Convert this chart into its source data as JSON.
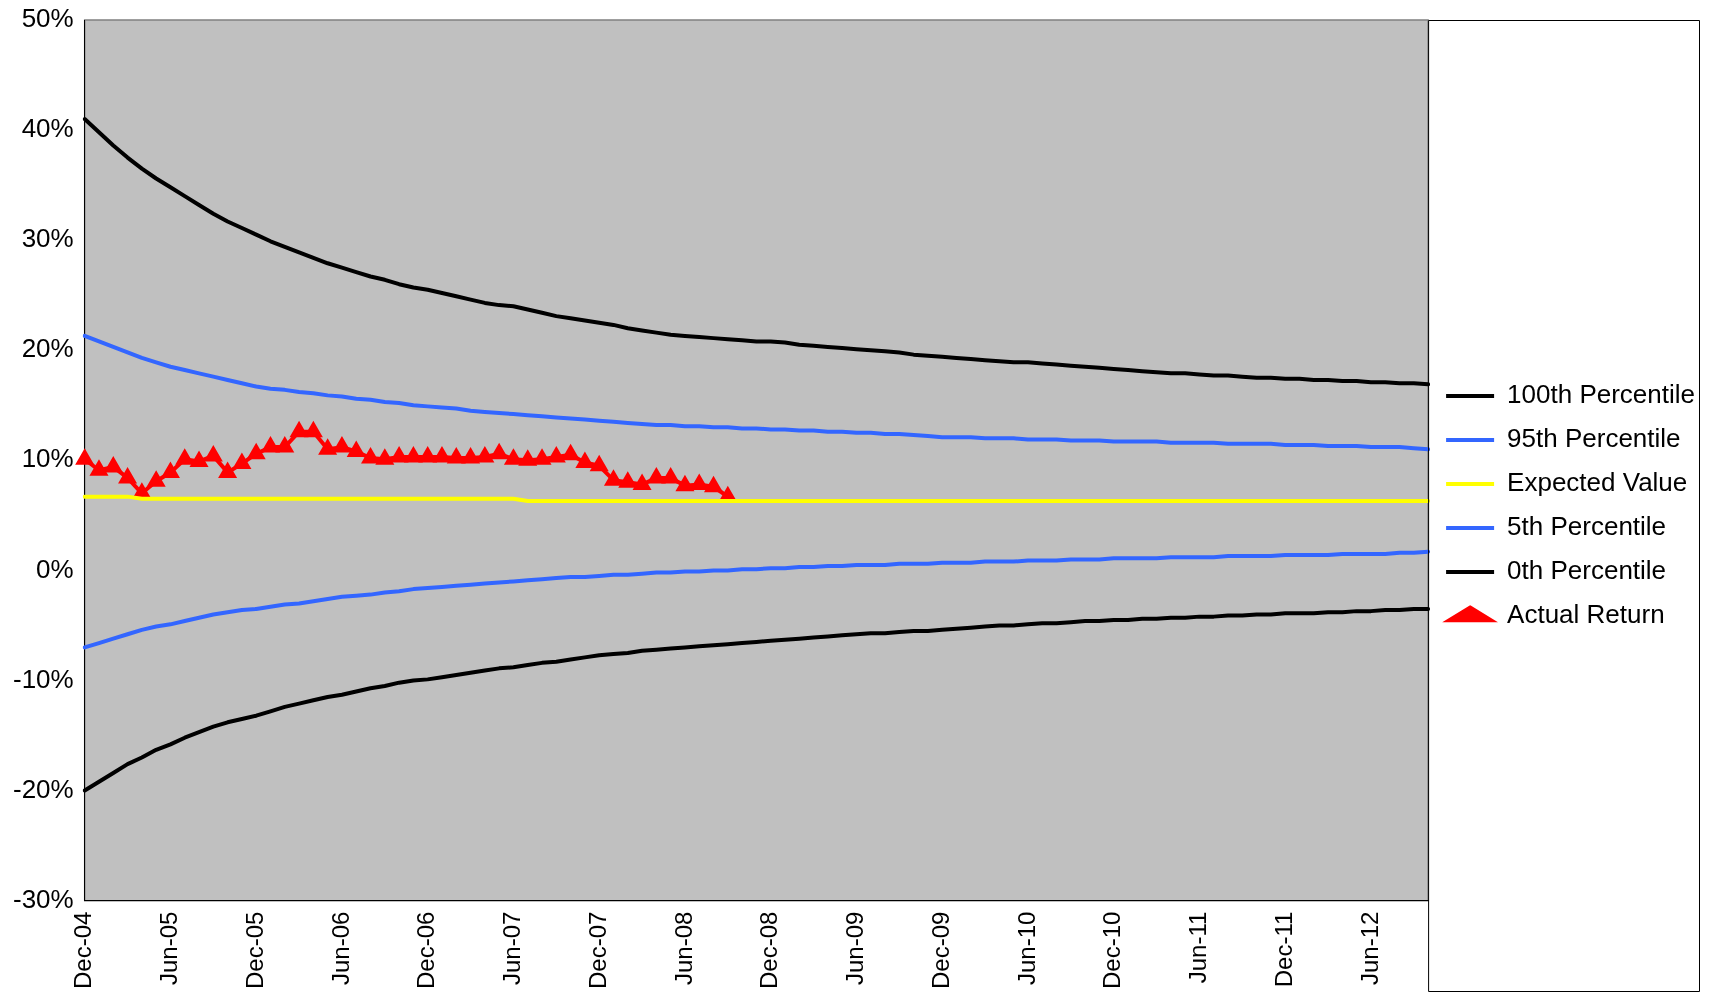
{
  "chart_data": {
    "type": "line",
    "categories": [
      "Dec-04",
      null,
      null,
      null,
      null,
      null,
      "Jun-05",
      null,
      null,
      null,
      null,
      null,
      "Dec-05",
      null,
      null,
      null,
      null,
      null,
      "Jun-06",
      null,
      null,
      null,
      null,
      null,
      "Dec-06",
      null,
      null,
      null,
      null,
      null,
      "Jun-07",
      null,
      null,
      null,
      null,
      null,
      "Dec-07",
      null,
      null,
      null,
      null,
      null,
      "Jun-08",
      null,
      null,
      null,
      null,
      null,
      "Dec-08",
      null,
      null,
      null,
      null,
      null,
      "Jun-09",
      null,
      null,
      null,
      null,
      null,
      "Dec-09",
      null,
      null,
      null,
      null,
      null,
      "Jun-10",
      null,
      null,
      null,
      null,
      null,
      "Dec-10",
      null,
      null,
      null,
      null,
      null,
      "Jun-11",
      null,
      null,
      null,
      null,
      null,
      "Dec-11",
      null,
      null,
      null,
      null,
      null,
      "Jun-12",
      null,
      null,
      null,
      null
    ],
    "series": [
      {
        "name": "100th Percentile",
        "color": "#000000",
        "marker": "none",
        "values": [
          41,
          39.8,
          38.6,
          37.5,
          36.5,
          35.6,
          34.8,
          34.0,
          33.2,
          32.4,
          31.7,
          31.1,
          30.5,
          29.9,
          29.4,
          28.9,
          28.4,
          27.9,
          27.5,
          27.1,
          26.7,
          26.4,
          26.0,
          25.7,
          25.5,
          25.2,
          24.9,
          24.6,
          24.3,
          24.1,
          24.0,
          23.7,
          23.4,
          23.1,
          22.9,
          22.7,
          22.5,
          22.3,
          22.0,
          21.8,
          21.6,
          21.4,
          21.3,
          21.2,
          21.1,
          21.0,
          20.9,
          20.8,
          20.8,
          20.7,
          20.5,
          20.4,
          20.3,
          20.2,
          20.1,
          20.0,
          19.9,
          19.8,
          19.6,
          19.5,
          19.4,
          19.3,
          19.2,
          19.1,
          19.0,
          18.9,
          18.9,
          18.8,
          18.7,
          18.6,
          18.5,
          18.4,
          18.3,
          18.2,
          18.1,
          18.0,
          17.9,
          17.9,
          17.8,
          17.7,
          17.7,
          17.6,
          17.5,
          17.5,
          17.4,
          17.4,
          17.3,
          17.3,
          17.2,
          17.2,
          17.1,
          17.1,
          17.0,
          17.0,
          16.9
        ]
      },
      {
        "name": "95th Percentile",
        "color": "#3366ff",
        "marker": "none",
        "values": [
          21.3,
          20.8,
          20.3,
          19.8,
          19.3,
          18.9,
          18.5,
          18.2,
          17.9,
          17.6,
          17.3,
          17.0,
          16.7,
          16.5,
          16.4,
          16.2,
          16.1,
          15.9,
          15.8,
          15.6,
          15.5,
          15.3,
          15.2,
          15.0,
          14.9,
          14.8,
          14.7,
          14.5,
          14.4,
          14.3,
          14.2,
          14.1,
          14.0,
          13.9,
          13.8,
          13.7,
          13.6,
          13.5,
          13.4,
          13.3,
          13.2,
          13.2,
          13.1,
          13.1,
          13.0,
          13.0,
          12.9,
          12.9,
          12.8,
          12.8,
          12.7,
          12.7,
          12.6,
          12.6,
          12.5,
          12.5,
          12.4,
          12.4,
          12.3,
          12.2,
          12.1,
          12.1,
          12.1,
          12.0,
          12.0,
          12.0,
          11.9,
          11.9,
          11.9,
          11.8,
          11.8,
          11.8,
          11.7,
          11.7,
          11.7,
          11.7,
          11.6,
          11.6,
          11.6,
          11.6,
          11.5,
          11.5,
          11.5,
          11.5,
          11.4,
          11.4,
          11.4,
          11.3,
          11.3,
          11.3,
          11.2,
          11.2,
          11.2,
          11.1,
          11.0
        ]
      },
      {
        "name": "Expected Value",
        "color": "#ffff00",
        "marker": "none",
        "values": [
          6.7,
          6.7,
          6.7,
          6.7,
          6.5,
          6.5,
          6.5,
          6.5,
          6.5,
          6.5,
          6.5,
          6.5,
          6.5,
          6.5,
          6.5,
          6.5,
          6.5,
          6.5,
          6.5,
          6.5,
          6.5,
          6.5,
          6.5,
          6.5,
          6.5,
          6.5,
          6.5,
          6.5,
          6.5,
          6.5,
          6.5,
          6.3,
          6.3,
          6.3,
          6.3,
          6.3,
          6.3,
          6.3,
          6.3,
          6.3,
          6.3,
          6.3,
          6.3,
          6.3,
          6.3,
          6.3,
          6.3,
          6.3,
          6.3,
          6.3,
          6.3,
          6.3,
          6.3,
          6.3,
          6.3,
          6.3,
          6.3,
          6.3,
          6.3,
          6.3,
          6.3,
          6.3,
          6.3,
          6.3,
          6.3,
          6.3,
          6.3,
          6.3,
          6.3,
          6.3,
          6.3,
          6.3,
          6.3,
          6.3,
          6.3,
          6.3,
          6.3,
          6.3,
          6.3,
          6.3,
          6.3,
          6.3,
          6.3,
          6.3,
          6.3,
          6.3,
          6.3,
          6.3,
          6.3,
          6.3,
          6.3,
          6.3,
          6.3,
          6.3,
          6.3
        ]
      },
      {
        "name": "5th Percentile",
        "color": "#3366ff",
        "marker": "none",
        "values": [
          -7.0,
          -6.6,
          -6.2,
          -5.8,
          -5.4,
          -5.1,
          -4.9,
          -4.6,
          -4.3,
          -4.0,
          -3.8,
          -3.6,
          -3.5,
          -3.3,
          -3.1,
          -3.0,
          -2.8,
          -2.6,
          -2.4,
          -2.3,
          -2.2,
          -2.0,
          -1.9,
          -1.7,
          -1.6,
          -1.5,
          -1.4,
          -1.3,
          -1.2,
          -1.1,
          -1.0,
          -0.9,
          -0.8,
          -0.7,
          -0.6,
          -0.6,
          -0.5,
          -0.4,
          -0.4,
          -0.3,
          -0.2,
          -0.2,
          -0.1,
          -0.1,
          0.0,
          0.0,
          0.1,
          0.1,
          0.2,
          0.2,
          0.3,
          0.3,
          0.4,
          0.4,
          0.5,
          0.5,
          0.5,
          0.6,
          0.6,
          0.6,
          0.7,
          0.7,
          0.7,
          0.8,
          0.8,
          0.8,
          0.9,
          0.9,
          0.9,
          1.0,
          1.0,
          1.0,
          1.1,
          1.1,
          1.1,
          1.1,
          1.2,
          1.2,
          1.2,
          1.2,
          1.3,
          1.3,
          1.3,
          1.3,
          1.4,
          1.4,
          1.4,
          1.4,
          1.5,
          1.5,
          1.5,
          1.5,
          1.6,
          1.6,
          1.7
        ]
      },
      {
        "name": "0th Percentile",
        "color": "#000000",
        "marker": "none",
        "values": [
          -20,
          -19.2,
          -18.4,
          -17.6,
          -17.0,
          -16.3,
          -15.8,
          -15.2,
          -14.7,
          -14.2,
          -13.8,
          -13.5,
          -13.2,
          -12.8,
          -12.4,
          -12.1,
          -11.8,
          -11.5,
          -11.3,
          -11.0,
          -10.7,
          -10.5,
          -10.2,
          -10.0,
          -9.9,
          -9.7,
          -9.5,
          -9.3,
          -9.1,
          -8.9,
          -8.8,
          -8.6,
          -8.4,
          -8.3,
          -8.1,
          -7.9,
          -7.7,
          -7.6,
          -7.5,
          -7.3,
          -7.2,
          -7.1,
          -7.0,
          -6.9,
          -6.8,
          -6.7,
          -6.6,
          -6.5,
          -6.4,
          -6.3,
          -6.2,
          -6.1,
          -6.0,
          -5.9,
          -5.8,
          -5.7,
          -5.7,
          -5.6,
          -5.5,
          -5.5,
          -5.4,
          -5.3,
          -5.2,
          -5.1,
          -5.0,
          -5.0,
          -4.9,
          -4.8,
          -4.8,
          -4.7,
          -4.6,
          -4.6,
          -4.5,
          -4.5,
          -4.4,
          -4.4,
          -4.3,
          -4.3,
          -4.2,
          -4.2,
          -4.1,
          -4.1,
          -4.0,
          -4.0,
          -3.9,
          -3.9,
          -3.9,
          -3.8,
          -3.8,
          -3.7,
          -3.7,
          -3.6,
          -3.6,
          -3.5,
          -3.5
        ]
      },
      {
        "name": "Actual Return",
        "color": "#ff0000",
        "marker": "triangle",
        "values": [
          10.1,
          9.1,
          9.4,
          8.4,
          7.0,
          8.1,
          8.9,
          10.1,
          9.9,
          10.4,
          8.9,
          9.7,
          10.6,
          11.2,
          11.2,
          12.6,
          12.6,
          11.0,
          11.2,
          10.8,
          10.2,
          10.1,
          10.3,
          10.3,
          10.3,
          10.3,
          10.2,
          10.2,
          10.3,
          10.6,
          10.1,
          10.0,
          10.1,
          10.3,
          10.5,
          9.8,
          9.5,
          8.2,
          8.0,
          7.8,
          8.4,
          8.4,
          7.7,
          7.8,
          7.6,
          6.7,
          null,
          null,
          null,
          null,
          null,
          null,
          null,
          null,
          null,
          null,
          null,
          null,
          null,
          null,
          null,
          null,
          null,
          null,
          null,
          null,
          null,
          null,
          null,
          null,
          null,
          null,
          null,
          null,
          null,
          null,
          null,
          null,
          null,
          null,
          null,
          null,
          null,
          null,
          null,
          null,
          null,
          null,
          null,
          null,
          null,
          null,
          null,
          null,
          null
        ]
      }
    ],
    "ylim": [
      -30,
      50
    ],
    "yticks": [
      {
        "value": -30,
        "label": "-30%"
      },
      {
        "value": -20,
        "label": "-20%"
      },
      {
        "value": -10,
        "label": "-10%"
      },
      {
        "value": 0,
        "label": "0%"
      },
      {
        "value": 10,
        "label": "10%"
      },
      {
        "value": 20,
        "label": "20%"
      },
      {
        "value": 30,
        "label": "30%"
      },
      {
        "value": 40,
        "label": "40%"
      },
      {
        "value": 50,
        "label": "50%"
      }
    ],
    "grid": false,
    "legend": "right"
  }
}
